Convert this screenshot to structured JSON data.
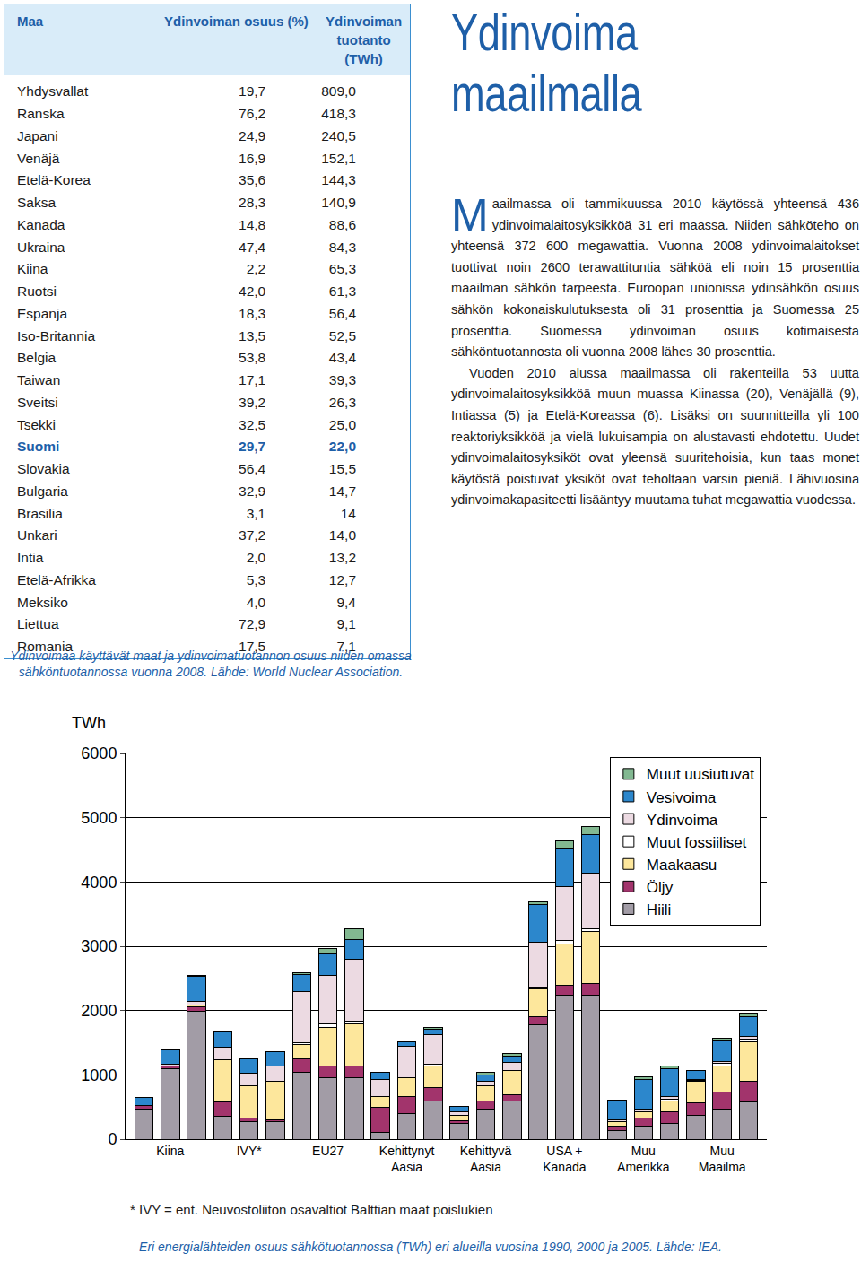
{
  "table": {
    "header": [
      "Maa",
      "Ydinvoiman osuus (%)",
      "Ydinvoiman tuotanto (TWh)"
    ],
    "highlight": "Suomi",
    "rows": [
      [
        "Yhdysvallat",
        "19,7",
        "809,0"
      ],
      [
        "Ranska",
        "76,2",
        "418,3"
      ],
      [
        "Japani",
        "24,9",
        "240,5"
      ],
      [
        "Venäjä",
        "16,9",
        "152,1"
      ],
      [
        "Etelä-Korea",
        "35,6",
        "144,3"
      ],
      [
        "Saksa",
        "28,3",
        "140,9"
      ],
      [
        "Kanada",
        "14,8",
        "88,6"
      ],
      [
        "Ukraina",
        "47,4",
        "84,3"
      ],
      [
        "Kiina",
        "2,2",
        "65,3"
      ],
      [
        "Ruotsi",
        "42,0",
        "61,3"
      ],
      [
        "Espanja",
        "18,3",
        "56,4"
      ],
      [
        "Iso-Britannia",
        "13,5",
        "52,5"
      ],
      [
        "Belgia",
        "53,8",
        "43,4"
      ],
      [
        "Taiwan",
        "17,1",
        "39,3"
      ],
      [
        "Sveitsi",
        "39,2",
        "26,3"
      ],
      [
        "Tsekki",
        "32,5",
        "25,0"
      ],
      [
        "Suomi",
        "29,7",
        "22,0"
      ],
      [
        "Slovakia",
        "56,4",
        "15,5"
      ],
      [
        "Bulgaria",
        "32,9",
        "14,7"
      ],
      [
        "Brasilia",
        "3,1",
        "14"
      ],
      [
        "Unkari",
        "37,2",
        "14,0"
      ],
      [
        "Intia",
        "2,0",
        "13,2"
      ],
      [
        "Etelä-Afrikka",
        "5,3",
        "12,7"
      ],
      [
        "Meksiko",
        "4,0",
        "9,4"
      ],
      [
        "Liettua",
        "72,9",
        "9,1"
      ],
      [
        "Romania",
        "17,5",
        "7,1"
      ]
    ],
    "caption": "Ydinvoimaa käyttävät maat ja ydinvoimatuotannon osuus niiden omassa sähköntuotannossa vuonna 2008. Lähde: World Nuclear Association."
  },
  "article": {
    "heading": [
      "Ydinvoima",
      "maailmalla"
    ],
    "paragraphs": [
      "Maailmassa oli tammikuussa 2010 käytössä yhteensä 436 ydinvoimalaitosyksikköä 31 eri maassa. Niiden sähköteho on yhteensä 372 600 megawattia. Vuonna 2008 ydinvoimalaitokset tuottivat noin 2600 terawattituntia sähköä eli noin 15 prosenttia maailman sähkön tarpeesta. Euroopan unionissa ydinsähkön osuus sähkön kokonaiskulutuksesta oli 31 prosenttia ja Suomessa 25 prosenttia. Suomessa ydinvoiman osuus kotimaisesta sähköntuotannosta oli vuonna 2008 lähes 30 prosenttia.",
      "Vuoden 2010 alussa maailmassa oli rakenteilla 53 uutta ydinvoimalaitosyksikköä muun muassa Kiinassa (20), Venäjällä (9), Intiassa (5) ja Etelä-Koreassa (6). Lisäksi on suunnitteilla yli 100 reaktoriyksikköä ja vielä lukuisampia on alustavasti ehdotettu. Uudet ydinvoimalaitosyksiköt ovat yleensä suuritehoisia, kun taas monet käytöstä poistuvat yksiköt ovat teholtaan varsin pieniä. Lähivuosina ydinvoimakapasiteetti lisääntyy muutama tuhat megawattia vuodessa."
    ]
  },
  "chart_data": {
    "type": "bar",
    "stacked": true,
    "y_label": "TWh",
    "categories": [
      null,
      "Kiina",
      null,
      null,
      "IVY*",
      null,
      null,
      "EU27",
      null,
      null,
      "Kehittynyt\nAasia",
      null,
      null,
      "Kehittyvä\nAasia",
      null,
      null,
      "USA +\nKanada",
      null,
      null,
      "Muu\nAmerikka",
      null,
      null,
      "Muu\nMaailma",
      null
    ],
    "ylim": [
      0,
      6000
    ],
    "yticks": [
      0,
      1000,
      2000,
      3000,
      4000,
      5000,
      6000
    ],
    "grid": true,
    "legend": "top right",
    "series": [
      {
        "name": "Hiili",
        "color": "#a29ca6",
        "values": [
          470,
          1090,
          1995,
          350,
          267,
          267,
          1040,
          960,
          960,
          107,
          400,
          600,
          240,
          467,
          600,
          1773,
          2240,
          2240,
          133,
          200,
          240,
          373,
          467,
          573
        ]
      },
      {
        "name": "Öljy",
        "color": "#a2346c",
        "values": [
          50,
          47,
          60,
          230,
          67,
          27,
          213,
          173,
          173,
          387,
          267,
          200,
          53,
          133,
          93,
          133,
          160,
          187,
          67,
          133,
          187,
          187,
          267,
          333
        ]
      },
      {
        "name": "Maakaasu",
        "color": "#fde79c",
        "values": [
          3,
          6,
          30,
          650,
          493,
          613,
          213,
          600,
          667,
          173,
          293,
          333,
          80,
          227,
          373,
          427,
          640,
          800,
          67,
          93,
          173,
          347,
          400,
          613
        ]
      },
      {
        "name": "Muut fossiiliset",
        "color": "#ffffff",
        "values": [
          0,
          0,
          0,
          0,
          0,
          0,
          30,
          60,
          40,
          0,
          0,
          27,
          0,
          0,
          0,
          27,
          53,
          40,
          0,
          0,
          27,
          13,
          40,
          40
        ]
      },
      {
        "name": "Ydinvoima",
        "color": "#ecdae2",
        "values": [
          0,
          17,
          53,
          200,
          200,
          227,
          800,
          760,
          960,
          267,
          480,
          467,
          53,
          80,
          133,
          707,
          840,
          867,
          27,
          40,
          40,
          13,
          27,
          40
        ]
      },
      {
        "name": "Vesivoima",
        "color": "#2c87cc",
        "values": [
          127,
          222,
          397,
          235,
          227,
          227,
          267,
          333,
          307,
          107,
          80,
          80,
          80,
          93,
          93,
          587,
          600,
          600,
          307,
          467,
          427,
          133,
          333,
          307
        ]
      },
      {
        "name": "Muut uusiutuvat",
        "color": "#82b891",
        "values": [
          0,
          3,
          5,
          2,
          0,
          0,
          20,
          80,
          160,
          0,
          0,
          27,
          0,
          40,
          40,
          40,
          107,
          133,
          0,
          40,
          40,
          0,
          40,
          53
        ]
      }
    ],
    "footnote": "* IVY = ent. Neuvostoliiton osavaltiot Balttian maat poislukien",
    "caption": "Eri energialähteiden osuus sähkötuotannossa (TWh) eri alueilla vuosina 1990, 2000 ja 2005. Lähde: IEA."
  }
}
